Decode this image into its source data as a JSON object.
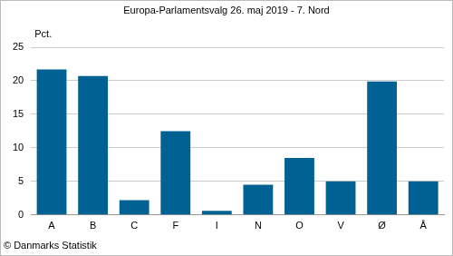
{
  "chart_data": {
    "type": "bar",
    "title": "Europa-Parlamentsvalg 26. maj 2019 - 7. Nord",
    "ylabel": "Pct.",
    "annotations": [
      "© Danmarks Statistik"
    ],
    "categories": [
      "A",
      "B",
      "C",
      "F",
      "I",
      "N",
      "O",
      "V",
      "Ø",
      "Å"
    ],
    "values": [
      21.7,
      20.7,
      2.2,
      12.5,
      0.6,
      4.5,
      8.5,
      5.0,
      19.9,
      5.0
    ],
    "color": "#006192",
    "ylim": [
      0,
      25
    ],
    "yticks": [
      0,
      5,
      10,
      15,
      20,
      25
    ],
    "grid": true
  }
}
